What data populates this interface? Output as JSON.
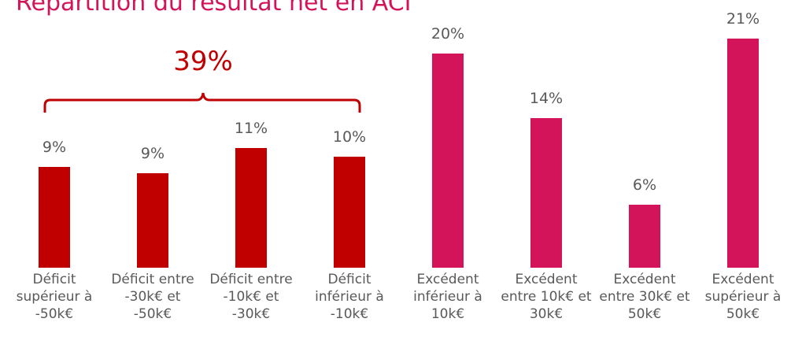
{
  "chart_data": {
    "type": "bar",
    "title": "Répartition du résultat net en ACI",
    "categories": [
      "Déficit supérieur à -50k€",
      "Déficit entre -30k€ et -50k€",
      "Déficit entre -10k€ et -30k€",
      "Déficit inférieur à -10k€",
      "Excédent inférieur à 10k€",
      "Excédent entre 10k€ et 30k€",
      "Excédent entre 30k€ et 50k€",
      "Excédent supérieur à 50k€"
    ],
    "values": [
      9.4,
      8.8,
      11.2,
      10.4,
      20,
      14,
      5.9,
      21.4
    ],
    "value_labels": [
      "9%",
      "9%",
      "11%",
      "10%",
      "20%",
      "14%",
      "6%",
      "21%"
    ],
    "colors": [
      "#c00000",
      "#c00000",
      "#c00000",
      "#c00000",
      "#d4145a",
      "#d4145a",
      "#d4145a",
      "#d4145a"
    ],
    "annotation": "39%",
    "grid": false
  }
}
